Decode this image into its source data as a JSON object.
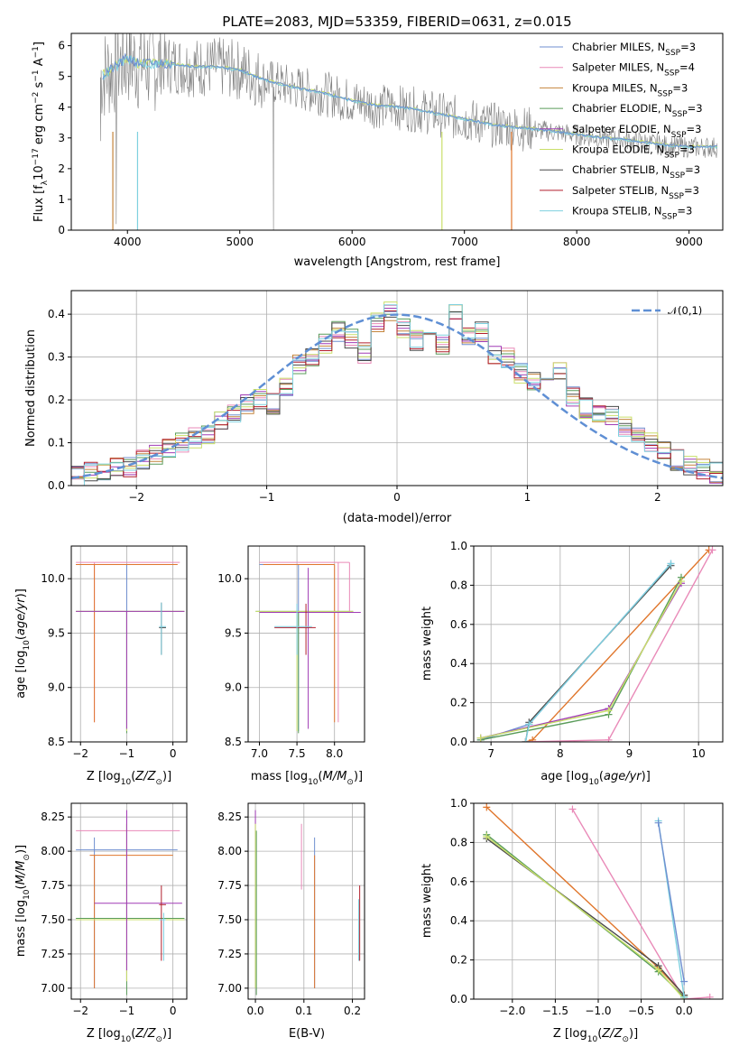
{
  "title": "PLATE=2083, MJD=53359, FIBERID=0631, z=0.015",
  "colors": {
    "Chabrier MILES": "#6f8fd0",
    "Salpeter MILES": "#e98ab8",
    "Kroupa MILES": "#c4843b",
    "Chabrier ELODIE": "#5a9c5a",
    "Salpeter ELODIE": "#a03cb5",
    "Kroupa ELODIE": "#c9df6a",
    "Chabrier STELIB": "#4a4a4a",
    "Salpeter STELIB": "#b21f2d",
    "Kroupa STELIB": "#7ed0df",
    "data": "#808080",
    "normal": "#5f8fd4",
    "orange": "#e0762c"
  },
  "chart_data": [
    {
      "type": "line",
      "panel": "spectrum",
      "title": "PLATE=2083, MJD=53359, FIBERID=0631, z=0.015",
      "xlabel": "wavelength [Angstrom, rest frame]",
      "ylabel": "Flux [f_λ 10^-17 erg cm^-2 s^-1 A^-1]",
      "xlim": [
        3500,
        9300
      ],
      "ylim": [
        0,
        6.4
      ],
      "xticks": [
        4000,
        5000,
        6000,
        7000,
        8000,
        9000
      ],
      "yticks": [
        0,
        1,
        2,
        3,
        4,
        5,
        6
      ],
      "legend": [
        "Chabrier MILES, N_SSP=3",
        "Salpeter MILES, N_SSP=4",
        "Kroupa MILES, N_SSP=3",
        "Chabrier ELODIE, N_SSP=3",
        "Salpeter ELODIE, N_SSP=3",
        "Kroupa ELODIE, N_SSP=3",
        "Chabrier STELIB, N_SSP=3",
        "Salpeter STELIB, N_SSP=3",
        "Kroupa STELIB, N_SSP=3"
      ],
      "legend_loc": "upper right",
      "continuum": {
        "x": [
          3760,
          3900,
          4000,
          4100,
          4200,
          4400,
          4600,
          4800,
          5000,
          5200,
          5400,
          5600,
          5800,
          6000,
          6200,
          6400,
          6600,
          6800,
          7000,
          7200,
          7400,
          7600,
          7800,
          8000,
          8200,
          8400,
          8600,
          8800,
          9000,
          9250
        ],
        "y": [
          5.0,
          5.3,
          5.6,
          5.4,
          5.4,
          5.4,
          5.3,
          5.3,
          5.2,
          4.9,
          4.7,
          4.55,
          4.4,
          4.2,
          4.05,
          4.0,
          3.9,
          3.75,
          3.6,
          3.45,
          3.35,
          3.28,
          3.2,
          3.1,
          3.0,
          2.95,
          2.85,
          2.75,
          2.7,
          2.7
        ]
      },
      "grid": false
    },
    {
      "type": "line",
      "panel": "residual_histogram",
      "xlabel": "(data-model)/error",
      "ylabel": "Normed distribution",
      "xlim": [
        -2.5,
        2.5
      ],
      "ylim": [
        0,
        0.455
      ],
      "xticks": [
        -2,
        -1,
        0,
        1,
        2
      ],
      "yticks": [
        0.0,
        0.1,
        0.2,
        0.3,
        0.4
      ],
      "legend": [
        "𝒩(0,1)"
      ],
      "legend_loc": "upper right",
      "bins": [
        -2.5,
        -2.4,
        -2.3,
        -2.2,
        -2.1,
        -2.0,
        -1.9,
        -1.8,
        -1.7,
        -1.6,
        -1.5,
        -1.4,
        -1.3,
        -1.2,
        -1.1,
        -1.0,
        -0.9,
        -0.8,
        -0.7,
        -0.6,
        -0.5,
        -0.4,
        -0.3,
        -0.2,
        -0.1,
        0.0,
        0.1,
        0.2,
        0.3,
        0.4,
        0.5,
        0.6,
        0.7,
        0.8,
        0.9,
        1.0,
        1.1,
        1.2,
        1.3,
        1.4,
        1.5,
        1.6,
        1.7,
        1.8,
        1.9,
        2.0,
        2.1,
        2.2,
        2.3,
        2.4
      ],
      "hist_values": [
        0.02,
        0.03,
        0.035,
        0.04,
        0.045,
        0.06,
        0.075,
        0.085,
        0.1,
        0.11,
        0.12,
        0.15,
        0.17,
        0.19,
        0.2,
        0.19,
        0.23,
        0.28,
        0.3,
        0.33,
        0.36,
        0.34,
        0.31,
        0.38,
        0.41,
        0.37,
        0.34,
        0.36,
        0.33,
        0.4,
        0.35,
        0.36,
        0.3,
        0.3,
        0.26,
        0.24,
        0.24,
        0.27,
        0.21,
        0.18,
        0.17,
        0.16,
        0.14,
        0.12,
        0.1,
        0.08,
        0.06,
        0.05,
        0.04,
        0.03
      ],
      "grid": true
    },
    {
      "type": "scatter",
      "panel": "age_vs_Z",
      "xlabel": "Z [log10(Z/Z⊙)]",
      "ylabel": "age [log10(age/yr)]",
      "xlim": [
        -2.2,
        0.3
      ],
      "ylim": [
        8.5,
        10.3
      ],
      "xticks": [
        -2,
        -1,
        0
      ],
      "yticks": [
        8.5,
        9.0,
        9.5,
        10.0
      ],
      "grid": true
    },
    {
      "type": "scatter",
      "panel": "age_vs_mass",
      "xlabel": "mass [log10(M/M⊙)]",
      "ylabel": "",
      "xlim": [
        6.85,
        8.4
      ],
      "ylim": [
        8.5,
        10.3
      ],
      "xticks": [
        7.0,
        7.5,
        8.0
      ],
      "yticks": [
        8.5,
        9.0,
        9.5,
        10.0
      ],
      "grid": true
    },
    {
      "type": "line",
      "panel": "massweight_vs_age",
      "xlabel": "age [log10(age/yr)]",
      "ylabel": "mass weight",
      "xlim": [
        6.75,
        10.35
      ],
      "ylim": [
        0,
        1.0
      ],
      "xticks": [
        7,
        8,
        9,
        10
      ],
      "yticks": [
        0.0,
        0.2,
        0.4,
        0.6,
        0.8,
        1.0
      ],
      "series": [
        {
          "name": "Chabrier MILES",
          "x": [
            6.85,
            7.55,
            9.6
          ],
          "y": [
            0.01,
            0.09,
            0.91
          ]
        },
        {
          "name": "Kroupa MILES",
          "x": [
            7.5,
            7.6,
            10.15
          ],
          "y": [
            0.0,
            0.01,
            0.98
          ]
        },
        {
          "name": "Salpeter MILES",
          "x": [
            7.5,
            8.7,
            10.2
          ],
          "y": [
            0.0,
            0.01,
            0.98
          ]
        },
        {
          "name": "Chabrier ELODIE",
          "x": [
            6.85,
            8.7,
            9.75
          ],
          "y": [
            0.01,
            0.14,
            0.84
          ]
        },
        {
          "name": "Salpeter ELODIE",
          "x": [
            6.85,
            8.7,
            9.75
          ],
          "y": [
            0.02,
            0.17,
            0.81
          ]
        },
        {
          "name": "Kroupa ELODIE",
          "x": [
            6.85,
            8.7,
            9.75
          ],
          "y": [
            0.02,
            0.16,
            0.82
          ]
        },
        {
          "name": "Chabrier STELIB",
          "x": [
            7.5,
            7.55,
            9.6
          ],
          "y": [
            0.0,
            0.1,
            0.9
          ]
        },
        {
          "name": "Kroupa STELIB",
          "x": [
            7.5,
            7.55,
            9.6
          ],
          "y": [
            0.0,
            0.09,
            0.91
          ]
        }
      ],
      "grid": true
    },
    {
      "type": "scatter",
      "panel": "mass_vs_Z",
      "xlabel": "Z [log10(Z/Z⊙)]",
      "ylabel": "mass [log10(M/M⊙)]",
      "xlim": [
        -2.2,
        0.3
      ],
      "ylim": [
        6.92,
        8.35
      ],
      "xticks": [
        -2,
        -1,
        0
      ],
      "yticks": [
        7.0,
        7.25,
        7.5,
        7.75,
        8.0,
        8.25
      ],
      "grid": true
    },
    {
      "type": "scatter",
      "panel": "mass_vs_EBV",
      "xlabel": "E(B-V)",
      "ylabel": "",
      "xlim": [
        -0.015,
        0.225
      ],
      "ylim": [
        6.92,
        8.35
      ],
      "xticks": [
        0.0,
        0.1,
        0.2
      ],
      "yticks": [
        7.0,
        7.25,
        7.5,
        7.75,
        8.0,
        8.25
      ],
      "grid": true
    },
    {
      "type": "line",
      "panel": "massweight_vs_Z",
      "xlabel": "Z [log10(Z/Z⊙)]",
      "ylabel": "mass weight",
      "xlim": [
        -2.45,
        0.45
      ],
      "ylim": [
        0,
        1.0
      ],
      "xticks": [
        -2.0,
        -1.5,
        -1.0,
        -0.5,
        0.0
      ],
      "yticks": [
        0.0,
        0.2,
        0.4,
        0.6,
        0.8,
        1.0
      ],
      "series": [
        {
          "name": "Kroupa MILES",
          "x": [
            -2.3,
            -0.3,
            0.0
          ],
          "y": [
            0.98,
            0.16,
            0.02
          ]
        },
        {
          "name": "Salpeter MILES",
          "x": [
            -1.3,
            0.0,
            0.3
          ],
          "y": [
            0.97,
            0.0,
            0.01
          ]
        },
        {
          "name": "Chabrier ELODIE",
          "x": [
            -2.3,
            -0.3,
            0.0
          ],
          "y": [
            0.84,
            0.14,
            0.01
          ]
        },
        {
          "name": "Chabrier STELIB",
          "x": [
            -2.3,
            -0.3,
            0.0
          ],
          "y": [
            0.82,
            0.17,
            0.02
          ]
        },
        {
          "name": "Kroupa ELODIE",
          "x": [
            -2.3,
            -0.3,
            0.0
          ],
          "y": [
            0.83,
            0.15,
            0.0
          ]
        },
        {
          "name": "Kroupa STELIB",
          "x": [
            -0.3,
            0.0
          ],
          "y": [
            0.91,
            0.01
          ]
        },
        {
          "name": "Chabrier MILES",
          "x": [
            -0.3,
            0.0
          ],
          "y": [
            0.9,
            0.09
          ]
        }
      ],
      "grid": true
    }
  ]
}
